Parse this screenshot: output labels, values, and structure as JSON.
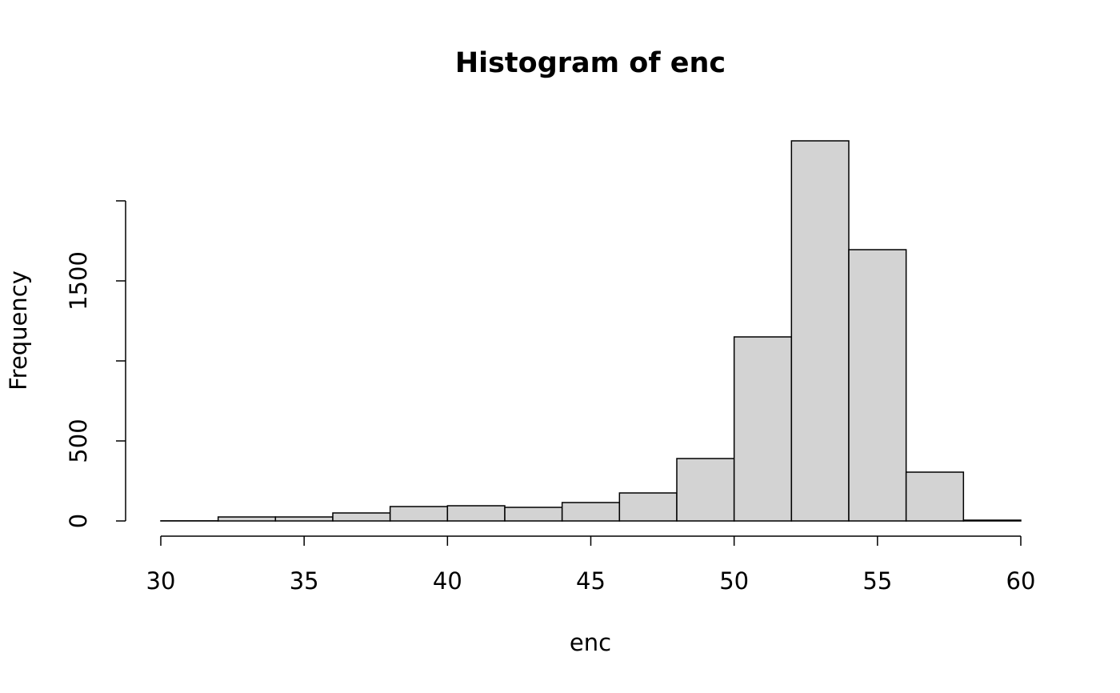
{
  "chart_data": {
    "type": "histogram",
    "title": "Histogram of enc",
    "x_label": "enc",
    "y_label": "Frequency",
    "bins": [
      30,
      32,
      34,
      36,
      38,
      40,
      42,
      44,
      46,
      48,
      50,
      52,
      54,
      56,
      58,
      60
    ],
    "counts": [
      1,
      25,
      25,
      50,
      90,
      95,
      85,
      115,
      175,
      390,
      1150,
      2375,
      1695,
      305,
      5
    ],
    "color": "#d3d3d3",
    "xlim": [
      30,
      60
    ],
    "xticks": [
      30,
      35,
      40,
      45,
      50,
      55,
      60
    ],
    "ylim": [
      0,
      2375
    ],
    "yticks": [
      0,
      500,
      1500
    ],
    "yminor_ticks": [
      1000,
      2000
    ]
  }
}
